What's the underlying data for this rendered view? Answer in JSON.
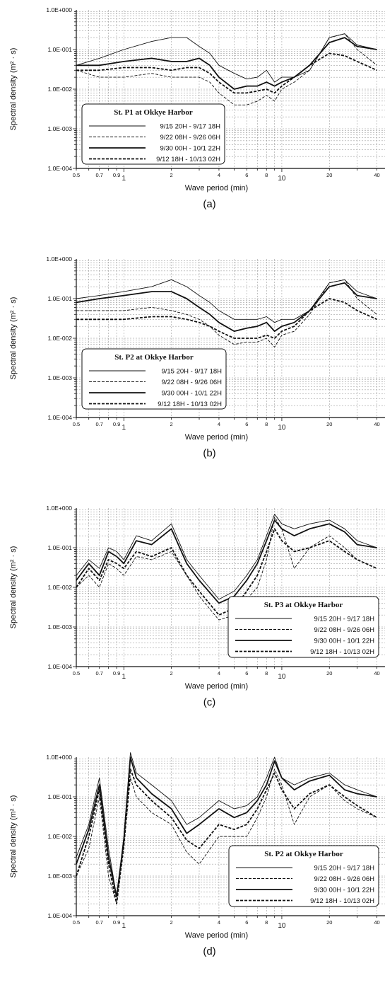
{
  "chart_data": [
    {
      "panel_label": "(a)",
      "type": "line",
      "title": "",
      "xlabel": "Wave period (min)",
      "ylabel": "Spectral density (m² · s)",
      "x_scale": "log",
      "y_scale": "log",
      "xlim": [
        0.5,
        45
      ],
      "ylim": [
        0.0001,
        1.0
      ],
      "grid": true,
      "legend_placement": "bottom-left",
      "legend_title": "St. P1 at Okkye Harbor",
      "y_ticklabels": [
        "1.0E+000",
        "1.0E-001",
        "1.0E-002",
        "1.0E-003",
        "1.0E-004"
      ],
      "x_ticklabels": [
        "0.5",
        "0.7",
        "0.9",
        "1",
        "2",
        "4",
        "6",
        "8",
        "10",
        "20",
        "40"
      ],
      "series": [
        {
          "name": "9/15 20H - 9/17 18H",
          "style": "thin-solid",
          "x": [
            0.5,
            0.7,
            1.0,
            1.5,
            2.0,
            2.5,
            3.0,
            3.5,
            4.0,
            5.0,
            6.0,
            7.0,
            8.0,
            9.0,
            10.0,
            12.0,
            15.0,
            20.0,
            25.0,
            30.0,
            40.0
          ],
          "y": [
            0.04,
            0.06,
            0.1,
            0.16,
            0.2,
            0.2,
            0.12,
            0.08,
            0.04,
            0.025,
            0.018,
            0.02,
            0.03,
            0.015,
            0.02,
            0.02,
            0.03,
            0.2,
            0.25,
            0.13,
            0.1
          ]
        },
        {
          "name": "9/22 08H - 9/26 06H",
          "style": "thin-dashed",
          "x": [
            0.5,
            0.7,
            1.0,
            1.5,
            2.0,
            2.5,
            3.0,
            3.5,
            4.0,
            5.0,
            6.0,
            7.0,
            8.0,
            9.0,
            10.0,
            12.0,
            15.0,
            20.0,
            25.0,
            30.0,
            40.0
          ],
          "y": [
            0.03,
            0.02,
            0.02,
            0.025,
            0.02,
            0.02,
            0.02,
            0.015,
            0.008,
            0.004,
            0.004,
            0.005,
            0.007,
            0.005,
            0.01,
            0.015,
            0.03,
            0.2,
            0.25,
            0.1,
            0.04
          ]
        },
        {
          "name": "9/30 00H - 10/1 22H",
          "style": "thick-solid",
          "x": [
            0.5,
            0.7,
            1.0,
            1.5,
            2.0,
            2.5,
            3.0,
            3.5,
            4.0,
            5.0,
            6.0,
            7.0,
            8.0,
            9.0,
            10.0,
            12.0,
            15.0,
            20.0,
            25.0,
            30.0,
            40.0
          ],
          "y": [
            0.04,
            0.04,
            0.05,
            0.06,
            0.05,
            0.05,
            0.06,
            0.04,
            0.02,
            0.01,
            0.012,
            0.012,
            0.015,
            0.012,
            0.015,
            0.02,
            0.04,
            0.15,
            0.2,
            0.12,
            0.1
          ]
        },
        {
          "name": "9/12 18H - 10/13 02H",
          "style": "thick-dashed",
          "x": [
            0.5,
            0.7,
            1.0,
            1.5,
            2.0,
            2.5,
            3.0,
            3.5,
            4.0,
            5.0,
            6.0,
            7.0,
            8.0,
            9.0,
            10.0,
            12.0,
            15.0,
            20.0,
            25.0,
            30.0,
            40.0
          ],
          "y": [
            0.03,
            0.03,
            0.035,
            0.035,
            0.03,
            0.035,
            0.035,
            0.025,
            0.015,
            0.008,
            0.008,
            0.009,
            0.01,
            0.008,
            0.012,
            0.02,
            0.04,
            0.08,
            0.07,
            0.05,
            0.03
          ]
        }
      ]
    },
    {
      "panel_label": "(b)",
      "type": "line",
      "title": "",
      "xlabel": "Wave period (min)",
      "ylabel": "Spectral density (m² · s)",
      "x_scale": "log",
      "y_scale": "log",
      "xlim": [
        0.5,
        45
      ],
      "ylim": [
        0.0001,
        1.0
      ],
      "grid": true,
      "legend_placement": "bottom-left",
      "legend_title": "St. P2 at Okkye Harbor",
      "y_ticklabels": [
        "1.0E+000",
        "1.0E-001",
        "1.0E-002",
        "1.0E-003",
        "1.0E-004"
      ],
      "x_ticklabels": [
        "0.5",
        "0.7",
        "0.9",
        "1",
        "2",
        "4",
        "6",
        "8",
        "10",
        "20",
        "40"
      ],
      "series": [
        {
          "name": "9/15 20H - 9/17 18H",
          "style": "thin-solid",
          "x": [
            0.5,
            0.7,
            1.0,
            1.5,
            2.0,
            2.5,
            3.0,
            3.5,
            4.0,
            5.0,
            6.0,
            7.0,
            8.0,
            9.0,
            10.0,
            12.0,
            15.0,
            20.0,
            25.0,
            30.0,
            40.0
          ],
          "y": [
            0.1,
            0.12,
            0.15,
            0.2,
            0.3,
            0.2,
            0.12,
            0.08,
            0.05,
            0.03,
            0.03,
            0.03,
            0.035,
            0.025,
            0.03,
            0.03,
            0.05,
            0.25,
            0.3,
            0.15,
            0.1
          ]
        },
        {
          "name": "9/22 08H - 9/26 06H",
          "style": "thin-dashed",
          "x": [
            0.5,
            0.7,
            1.0,
            1.5,
            2.0,
            2.5,
            3.0,
            3.5,
            4.0,
            5.0,
            6.0,
            7.0,
            8.0,
            9.0,
            10.0,
            12.0,
            15.0,
            20.0,
            25.0,
            30.0,
            40.0
          ],
          "y": [
            0.05,
            0.05,
            0.05,
            0.06,
            0.05,
            0.04,
            0.03,
            0.02,
            0.012,
            0.007,
            0.008,
            0.008,
            0.01,
            0.006,
            0.012,
            0.015,
            0.04,
            0.25,
            0.3,
            0.1,
            0.04
          ]
        },
        {
          "name": "9/30 00H - 10/1 22H",
          "style": "thick-solid",
          "x": [
            0.5,
            0.7,
            1.0,
            1.5,
            2.0,
            2.5,
            3.0,
            3.5,
            4.0,
            5.0,
            6.0,
            7.0,
            8.0,
            9.0,
            10.0,
            12.0,
            15.0,
            20.0,
            25.0,
            30.0,
            40.0
          ],
          "y": [
            0.08,
            0.1,
            0.12,
            0.15,
            0.15,
            0.1,
            0.06,
            0.04,
            0.025,
            0.015,
            0.018,
            0.02,
            0.025,
            0.015,
            0.02,
            0.025,
            0.05,
            0.2,
            0.25,
            0.12,
            0.1
          ]
        },
        {
          "name": "9/12 18H - 10/13 02H",
          "style": "thick-dashed",
          "x": [
            0.5,
            0.7,
            1.0,
            1.5,
            2.0,
            2.5,
            3.0,
            3.5,
            4.0,
            5.0,
            6.0,
            7.0,
            8.0,
            9.0,
            10.0,
            12.0,
            15.0,
            20.0,
            25.0,
            30.0,
            40.0
          ],
          "y": [
            0.03,
            0.03,
            0.03,
            0.035,
            0.035,
            0.03,
            0.025,
            0.02,
            0.015,
            0.01,
            0.01,
            0.01,
            0.012,
            0.01,
            0.015,
            0.02,
            0.05,
            0.1,
            0.08,
            0.05,
            0.03
          ]
        }
      ]
    },
    {
      "panel_label": "(c)",
      "type": "line",
      "title": "",
      "xlabel": "Wave period (min)",
      "ylabel": "Spectral density (m² · s)",
      "x_scale": "log",
      "y_scale": "log",
      "xlim": [
        0.5,
        45
      ],
      "ylim": [
        0.0001,
        1.0
      ],
      "grid": true,
      "legend_placement": "bottom-right",
      "legend_title": "St. P3 at Okkye Harbor",
      "y_ticklabels": [
        "1.0E+000",
        "1.0E-001",
        "1.0E-002",
        "1.0E-003",
        "1.0E-004"
      ],
      "x_ticklabels": [
        "0.5",
        "0.7",
        "0.9",
        "1",
        "2",
        "4",
        "6",
        "8",
        "10",
        "20",
        "40"
      ],
      "series": [
        {
          "name": "9/15 20H - 9/17 18H",
          "style": "thin-solid",
          "x": [
            0.5,
            0.6,
            0.7,
            0.8,
            0.9,
            1.0,
            1.2,
            1.5,
            2.0,
            2.5,
            3.0,
            4.0,
            5.0,
            6.0,
            7.0,
            8.0,
            9.0,
            10.0,
            12.0,
            15.0,
            20.0,
            25.0,
            30.0,
            40.0
          ],
          "y": [
            0.02,
            0.05,
            0.03,
            0.1,
            0.08,
            0.05,
            0.2,
            0.15,
            0.4,
            0.05,
            0.02,
            0.005,
            0.008,
            0.02,
            0.05,
            0.2,
            0.7,
            0.4,
            0.3,
            0.4,
            0.5,
            0.3,
            0.15,
            0.1
          ]
        },
        {
          "name": "9/22 08H - 9/26 06H",
          "style": "thin-dashed",
          "x": [
            0.5,
            0.6,
            0.7,
            0.8,
            0.9,
            1.0,
            1.2,
            1.5,
            2.0,
            2.5,
            3.0,
            4.0,
            5.0,
            6.0,
            7.0,
            8.0,
            9.0,
            10.0,
            12.0,
            15.0,
            20.0,
            25.0,
            30.0,
            40.0
          ],
          "y": [
            0.01,
            0.02,
            0.01,
            0.04,
            0.03,
            0.02,
            0.06,
            0.05,
            0.08,
            0.02,
            0.006,
            0.0015,
            0.002,
            0.005,
            0.01,
            0.05,
            0.6,
            0.3,
            0.03,
            0.1,
            0.2,
            0.1,
            0.05,
            0.03
          ]
        },
        {
          "name": "9/30 00H - 10/1 22H",
          "style": "thick-solid",
          "x": [
            0.5,
            0.6,
            0.7,
            0.8,
            0.9,
            1.0,
            1.2,
            1.5,
            2.0,
            2.5,
            3.0,
            4.0,
            5.0,
            6.0,
            7.0,
            8.0,
            9.0,
            10.0,
            12.0,
            15.0,
            20.0,
            25.0,
            30.0,
            40.0
          ],
          "y": [
            0.015,
            0.04,
            0.02,
            0.08,
            0.06,
            0.04,
            0.15,
            0.12,
            0.3,
            0.04,
            0.015,
            0.004,
            0.006,
            0.015,
            0.04,
            0.15,
            0.5,
            0.3,
            0.2,
            0.3,
            0.4,
            0.25,
            0.12,
            0.1
          ]
        },
        {
          "name": "9/12 18H - 10/13 02H",
          "style": "thick-dashed",
          "x": [
            0.5,
            0.6,
            0.7,
            0.8,
            0.9,
            1.0,
            1.2,
            1.5,
            2.0,
            2.5,
            3.0,
            4.0,
            5.0,
            6.0,
            7.0,
            8.0,
            9.0,
            10.0,
            12.0,
            15.0,
            20.0,
            25.0,
            30.0,
            40.0
          ],
          "y": [
            0.01,
            0.03,
            0.015,
            0.05,
            0.04,
            0.03,
            0.08,
            0.06,
            0.1,
            0.02,
            0.008,
            0.002,
            0.003,
            0.008,
            0.02,
            0.08,
            0.3,
            0.15,
            0.08,
            0.1,
            0.15,
            0.08,
            0.05,
            0.03
          ]
        }
      ]
    },
    {
      "panel_label": "(d)",
      "type": "line",
      "title": "",
      "xlabel": "Wave period (min)",
      "ylabel": "Spectral density (m² · s)",
      "x_scale": "log",
      "y_scale": "log",
      "xlim": [
        0.5,
        45
      ],
      "ylim": [
        0.0001,
        1.0
      ],
      "grid": true,
      "legend_placement": "bottom-right",
      "legend_title": "St. P2 at Okkye Harbor",
      "y_ticklabels": [
        "1.0E+000",
        "1.0E-001",
        "1.0E-002",
        "1.0E-003",
        "1.0E-004"
      ],
      "x_ticklabels": [
        "0.5",
        "0.7",
        "0.9",
        "1",
        "2",
        "4",
        "6",
        "8",
        "10",
        "20",
        "40"
      ],
      "series": [
        {
          "name": "9/15 20H - 9/17 18H",
          "style": "thin-solid",
          "x": [
            0.5,
            0.6,
            0.7,
            0.8,
            0.9,
            1.0,
            1.1,
            1.2,
            1.5,
            2.0,
            2.5,
            3.0,
            4.0,
            5.0,
            6.0,
            7.0,
            8.0,
            9.0,
            10.0,
            12.0,
            15.0,
            20.0,
            25.0,
            30.0,
            40.0
          ],
          "y": [
            0.003,
            0.02,
            0.3,
            0.005,
            0.0003,
            0.01,
            1.3,
            0.4,
            0.2,
            0.08,
            0.02,
            0.03,
            0.08,
            0.05,
            0.06,
            0.1,
            0.3,
            1.0,
            0.3,
            0.2,
            0.3,
            0.4,
            0.2,
            0.15,
            0.1
          ]
        },
        {
          "name": "9/22 08H - 9/26 06H",
          "style": "thin-dashed",
          "x": [
            0.5,
            0.6,
            0.7,
            0.8,
            0.9,
            1.0,
            1.1,
            1.2,
            1.5,
            2.0,
            2.5,
            3.0,
            4.0,
            5.0,
            6.0,
            7.0,
            8.0,
            9.0,
            10.0,
            12.0,
            15.0,
            20.0,
            25.0,
            30.0,
            40.0
          ],
          "y": [
            0.001,
            0.005,
            0.1,
            0.001,
            0.0002,
            0.005,
            0.3,
            0.1,
            0.04,
            0.02,
            0.004,
            0.002,
            0.01,
            0.01,
            0.01,
            0.03,
            0.1,
            0.5,
            0.2,
            0.02,
            0.1,
            0.2,
            0.08,
            0.05,
            0.03
          ]
        },
        {
          "name": "9/30 00H - 10/1 22H",
          "style": "thick-solid",
          "x": [
            0.5,
            0.6,
            0.7,
            0.8,
            0.9,
            1.0,
            1.1,
            1.2,
            1.5,
            2.0,
            2.5,
            3.0,
            4.0,
            5.0,
            6.0,
            7.0,
            8.0,
            9.0,
            10.0,
            12.0,
            15.0,
            20.0,
            25.0,
            30.0,
            40.0
          ],
          "y": [
            0.002,
            0.015,
            0.2,
            0.003,
            0.0003,
            0.008,
            1.0,
            0.3,
            0.12,
            0.05,
            0.012,
            0.02,
            0.05,
            0.03,
            0.04,
            0.08,
            0.2,
            0.8,
            0.3,
            0.15,
            0.25,
            0.35,
            0.15,
            0.12,
            0.1
          ]
        },
        {
          "name": "9/12 18H - 10/13 02H",
          "style": "thick-dashed",
          "x": [
            0.5,
            0.6,
            0.7,
            0.8,
            0.9,
            1.0,
            1.1,
            1.2,
            1.5,
            2.0,
            2.5,
            3.0,
            4.0,
            5.0,
            6.0,
            7.0,
            8.0,
            9.0,
            10.0,
            12.0,
            15.0,
            20.0,
            25.0,
            30.0,
            40.0
          ],
          "y": [
            0.001,
            0.01,
            0.15,
            0.002,
            0.0002,
            0.006,
            0.5,
            0.2,
            0.08,
            0.03,
            0.008,
            0.005,
            0.02,
            0.015,
            0.02,
            0.05,
            0.15,
            0.4,
            0.15,
            0.05,
            0.12,
            0.2,
            0.1,
            0.06,
            0.03
          ]
        }
      ]
    }
  ]
}
